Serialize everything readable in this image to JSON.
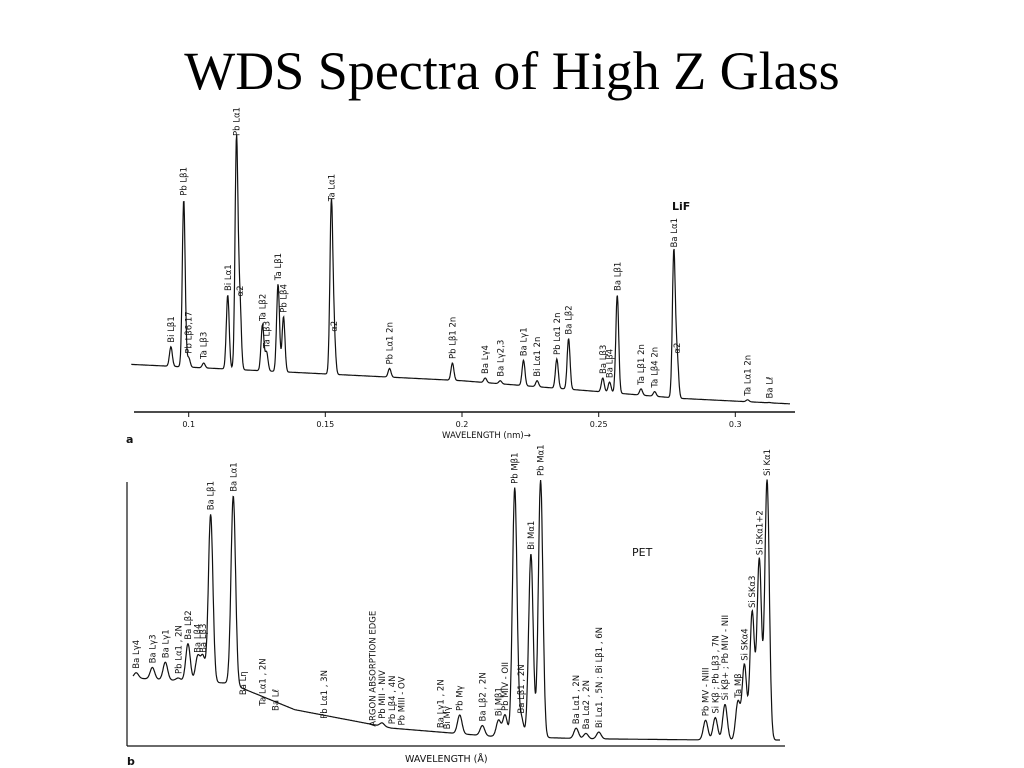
{
  "title": "WDS Spectra of High Z Glass",
  "chart_data": [
    {
      "type": "line",
      "panel": "a",
      "crystal": "LiF",
      "xlabel": "WAVELENGTH (nm)→",
      "xlim": [
        0.08,
        0.32
      ],
      "ylim": [
        0,
        100
      ],
      "x_ticks": [
        {
          "v": 0.1,
          "label": "0.1"
        },
        {
          "v": 0.15,
          "label": "0.15"
        },
        {
          "v": 0.2,
          "label": "0.2"
        },
        {
          "v": 0.25,
          "label": "0.25"
        },
        {
          "v": 0.3,
          "label": "0.3"
        }
      ],
      "background": [
        [
          0.079,
          17.5
        ],
        [
          0.1,
          16.5
        ],
        [
          0.15,
          14
        ],
        [
          0.2,
          11.5
        ],
        [
          0.25,
          7.5
        ],
        [
          0.28,
          5
        ],
        [
          0.32,
          3
        ]
      ],
      "peaks": [
        {
          "x": 0.0935,
          "y": 24,
          "label": "Bi Lβ1"
        },
        {
          "x": 0.0982,
          "y": 78,
          "label": "Pb Lβ1"
        },
        {
          "x": 0.1,
          "y": 20,
          "label": "Pb Lβ6,17"
        },
        {
          "x": 0.1055,
          "y": 18,
          "label": "Ta Lβ3"
        },
        {
          "x": 0.1143,
          "y": 43,
          "label": "Bi Lα1"
        },
        {
          "x": 0.1175,
          "y": 100,
          "label": "Pb Lα1"
        },
        {
          "x": 0.1187,
          "y": 41,
          "label": "α2"
        },
        {
          "x": 0.127,
          "y": 32,
          "label": "Ta Lβ2"
        },
        {
          "x": 0.1285,
          "y": 22,
          "label": "Ta Lβ3"
        },
        {
          "x": 0.1327,
          "y": 47,
          "label": "Ta Lβ1"
        },
        {
          "x": 0.1347,
          "y": 35,
          "label": "Pb Lβ4"
        },
        {
          "x": 0.1522,
          "y": 76,
          "label": "Ta Lα1"
        },
        {
          "x": 0.1532,
          "y": 28,
          "label": "α2"
        },
        {
          "x": 0.1735,
          "y": 16,
          "label": "Pb Lα1 2n"
        },
        {
          "x": 0.1965,
          "y": 18,
          "label": "Pb Lβ1 2n"
        },
        {
          "x": 0.2085,
          "y": 12.5,
          "label": "Ba Lγ4"
        },
        {
          "x": 0.214,
          "y": 11.5,
          "label": "Ba Lγ2,3"
        },
        {
          "x": 0.2225,
          "y": 19,
          "label": "Ba Lγ1"
        },
        {
          "x": 0.2275,
          "y": 11.5,
          "label": "Bi Lα1 2n"
        },
        {
          "x": 0.2347,
          "y": 19.5,
          "label": "Pb Lα1 2n"
        },
        {
          "x": 0.239,
          "y": 27,
          "label": "Ba Lβ2"
        },
        {
          "x": 0.2515,
          "y": 12.5,
          "label": "Ba Lβ3"
        },
        {
          "x": 0.254,
          "y": 11,
          "label": "Ba Lβ4"
        },
        {
          "x": 0.2568,
          "y": 43,
          "label": "Ba Lβ1"
        },
        {
          "x": 0.2655,
          "y": 8.5,
          "label": "Ta Lβ1 2n"
        },
        {
          "x": 0.2705,
          "y": 7.5,
          "label": "Ta Lβ4 2n"
        },
        {
          "x": 0.2775,
          "y": 59,
          "label": "Ba Lα1"
        },
        {
          "x": 0.2787,
          "y": 20,
          "label": "α2"
        },
        {
          "x": 0.3045,
          "y": 4.5,
          "label": "Ta Lα1 2n"
        },
        {
          "x": 0.3125,
          "y": 3.5,
          "label": "Ba Lℓ"
        }
      ]
    },
    {
      "type": "line",
      "panel": "b",
      "crystal": "PET",
      "xlabel": "WAVELENGTH (Å)",
      "xlim": [
        0,
        100
      ],
      "ylim": [
        0,
        100
      ],
      "background": [
        [
          0,
          25
        ],
        [
          15,
          23
        ],
        [
          25,
          13
        ],
        [
          40,
          6
        ],
        [
          55,
          3
        ],
        [
          70,
          2
        ],
        [
          90,
          1.5
        ],
        [
          100,
          1.5
        ]
      ],
      "peaks": [
        {
          "x": 0.5,
          "y": 27,
          "label": "Ba Lγ4"
        },
        {
          "x": 3,
          "y": 29,
          "label": "Ba Lγ3"
        },
        {
          "x": 5,
          "y": 31,
          "label": "Ba Lγ1"
        },
        {
          "x": 7,
          "y": 25,
          "label": "Pb Lα1 , 2N"
        },
        {
          "x": 8.5,
          "y": 38,
          "label": "Ba Lβ2"
        },
        {
          "x": 10,
          "y": 33,
          "label": "Ba Lβ4"
        },
        {
          "x": 10.8,
          "y": 33,
          "label": "Ba Lβ3"
        },
        {
          "x": 12,
          "y": 87,
          "label": "Ba Lβ1"
        },
        {
          "x": 15.5,
          "y": 94,
          "label": "Ba Lα1"
        },
        {
          "x": 17,
          "y": 17,
          "label": "Ba Lη"
        },
        {
          "x": 20,
          "y": 13,
          "label": "Ta Lα1 , 2N"
        },
        {
          "x": 22,
          "y": 11,
          "label": "Ba Lℓ"
        },
        {
          "x": 29.5,
          "y": 8,
          "label": "Pb Lα1 , 3N"
        },
        {
          "x": 37,
          "y": 5,
          "label": "ARGON ABSORPTION EDGE"
        },
        {
          "x": 38.5,
          "y": 8,
          "label": "Pb MII - NIV"
        },
        {
          "x": 40,
          "y": 6,
          "label": "Pb Lβ4 , 4N"
        },
        {
          "x": 41.5,
          "y": 5.5,
          "label": "Pb MIII - OV"
        },
        {
          "x": 47.5,
          "y": 4.5,
          "label": "Ba Lγ1 , 2N"
        },
        {
          "x": 48.5,
          "y": 4,
          "label": "Bi Mγ"
        },
        {
          "x": 50.5,
          "y": 11,
          "label": "Pb Mγ"
        },
        {
          "x": 54,
          "y": 7,
          "label": "Ba Lβ2 , 2N"
        },
        {
          "x": 56.5,
          "y": 9,
          "label": "Bi Mβ1"
        },
        {
          "x": 57.5,
          "y": 11,
          "label": "Pb MIV - OII"
        },
        {
          "x": 59,
          "y": 97,
          "label": "Pb Mβ1"
        },
        {
          "x": 60,
          "y": 10,
          "label": "Ba Lβ1 , 2N"
        },
        {
          "x": 61.5,
          "y": 72,
          "label": "Bi Mα1"
        },
        {
          "x": 63,
          "y": 100,
          "label": "Pb Mα1"
        },
        {
          "x": 68.5,
          "y": 6,
          "label": "Ba Lα1 , 2N"
        },
        {
          "x": 70,
          "y": 4,
          "label": "Ba Lα2 , 2N"
        },
        {
          "x": 72,
          "y": 4.5,
          "label": "Bi Lα1 , 5N ; Bi Lβ1 , 6N"
        },
        {
          "x": 88.5,
          "y": 9,
          "label": "Pb MV - NIII"
        },
        {
          "x": 90,
          "y": 10,
          "label": "Si Kβ ; Pb Lβ3 , 7N"
        },
        {
          "x": 91.5,
          "y": 15,
          "label": "Si Kβ+ ; Pb MIV - NII"
        },
        {
          "x": 93.5,
          "y": 16,
          "label": "Ta Mβ"
        },
        {
          "x": 94.5,
          "y": 30,
          "label": "Si SKα4"
        },
        {
          "x": 95.7,
          "y": 50,
          "label": "Si SKα3"
        },
        {
          "x": 96.8,
          "y": 70,
          "label": "Si SKα1+2"
        },
        {
          "x": 98,
          "y": 100,
          "label": "Si Kα1"
        }
      ]
    }
  ]
}
